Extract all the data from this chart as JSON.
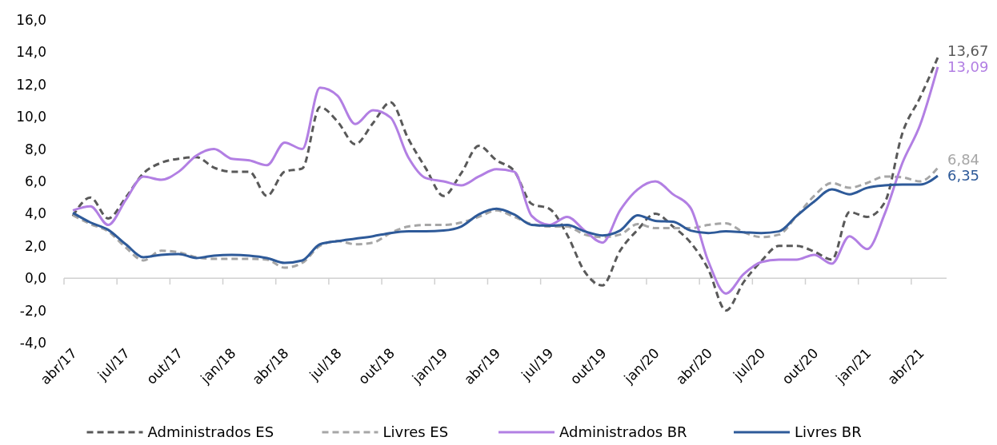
{
  "chart_data": {
    "type": "line",
    "categories": [
      "abr/17",
      null,
      null,
      "jul/17",
      null,
      null,
      "out/17",
      null,
      null,
      "jan/18",
      null,
      null,
      "abr/18",
      null,
      null,
      "jul/18",
      null,
      null,
      "out/18",
      null,
      null,
      "jan/19",
      null,
      null,
      "abr/19",
      null,
      null,
      "jul/19",
      null,
      null,
      "out/19",
      null,
      null,
      "jan/20",
      null,
      null,
      "abr/20",
      null,
      null,
      "jul/20",
      null,
      null,
      "out/20",
      null,
      null,
      "jan/21",
      null,
      null,
      "abr/21",
      null
    ],
    "ylim": [
      -4,
      16
    ],
    "yticks": [
      {
        "value": -4,
        "label": "-4,0"
      },
      {
        "value": -2,
        "label": "-2,0"
      },
      {
        "value": 0,
        "label": "0,0"
      },
      {
        "value": 2,
        "label": "2,0"
      },
      {
        "value": 4,
        "label": "4,0"
      },
      {
        "value": 6,
        "label": "6,0"
      },
      {
        "value": 8,
        "label": "8,0"
      },
      {
        "value": 10,
        "label": "10,0"
      },
      {
        "value": 12,
        "label": "12,0"
      },
      {
        "value": 14,
        "label": "14,0"
      },
      {
        "value": 16,
        "label": "16,0"
      }
    ],
    "legend": "bottom",
    "marker": "none",
    "series": [
      {
        "name": "Administrados ES",
        "color": "#595959",
        "line_style": "dashed",
        "values": [
          3.85,
          5.0,
          3.7,
          5.0,
          6.5,
          7.15,
          7.4,
          7.5,
          6.85,
          6.6,
          6.6,
          5.1,
          6.6,
          6.8,
          10.6,
          9.7,
          8.3,
          9.6,
          10.9,
          8.65,
          6.8,
          5.1,
          6.5,
          8.2,
          7.3,
          6.65,
          4.6,
          4.3,
          2.7,
          0.4,
          -0.45,
          1.7,
          3.0,
          4.0,
          3.2,
          2.2,
          0.55,
          -2.0,
          -0.25,
          1.05,
          2.0,
          2.0,
          1.65,
          1.15,
          4.1,
          3.8,
          4.7,
          9.0,
          11.2,
          13.67
        ],
        "value_labels": [
          null,
          null,
          null,
          null,
          null,
          null,
          null,
          null,
          null,
          null,
          null,
          null,
          null,
          null,
          null,
          null,
          null,
          null,
          null,
          null,
          null,
          null,
          null,
          null,
          null,
          null,
          null,
          null,
          null,
          null,
          null,
          null,
          null,
          null,
          null,
          null,
          null,
          null,
          null,
          null,
          null,
          null,
          null,
          null,
          null,
          null,
          null,
          null,
          null,
          "13,67"
        ]
      },
      {
        "name": "Livres ES",
        "color": "#a6a6a6",
        "line_style": "dashed",
        "values": [
          3.9,
          3.35,
          2.9,
          1.9,
          1.1,
          1.7,
          1.6,
          1.3,
          1.2,
          1.2,
          1.2,
          1.15,
          0.65,
          0.95,
          2.0,
          2.3,
          2.1,
          2.2,
          2.8,
          3.2,
          3.3,
          3.3,
          3.45,
          3.8,
          4.2,
          3.8,
          3.35,
          3.2,
          3.2,
          2.7,
          2.55,
          2.7,
          3.35,
          3.1,
          3.1,
          3.1,
          3.3,
          3.4,
          2.85,
          2.55,
          2.7,
          3.85,
          5.1,
          5.9,
          5.6,
          5.9,
          6.3,
          6.25,
          6.0,
          6.84
        ],
        "value_labels": [
          null,
          null,
          null,
          null,
          null,
          null,
          null,
          null,
          null,
          null,
          null,
          null,
          null,
          null,
          null,
          null,
          null,
          null,
          null,
          null,
          null,
          null,
          null,
          null,
          null,
          null,
          null,
          null,
          null,
          null,
          null,
          null,
          null,
          null,
          null,
          null,
          null,
          null,
          null,
          null,
          null,
          null,
          null,
          null,
          null,
          null,
          null,
          null,
          null,
          "6,84"
        ]
      },
      {
        "name": "Administrados BR",
        "color": "#b27fe3",
        "line_style": "solid",
        "values": [
          4.2,
          4.45,
          3.3,
          4.85,
          6.3,
          6.1,
          6.6,
          7.6,
          8.0,
          7.4,
          7.3,
          7.0,
          8.4,
          8.0,
          11.8,
          11.3,
          9.55,
          10.4,
          9.95,
          7.5,
          6.2,
          6.0,
          5.75,
          6.3,
          6.75,
          6.6,
          3.85,
          3.3,
          3.8,
          2.95,
          2.2,
          4.2,
          5.5,
          6.0,
          5.2,
          4.35,
          1.05,
          -0.95,
          0.25,
          1.0,
          1.15,
          1.15,
          1.45,
          0.9,
          2.6,
          1.8,
          4.0,
          7.15,
          9.5,
          13.09
        ],
        "value_labels": [
          null,
          null,
          null,
          null,
          null,
          null,
          null,
          null,
          null,
          null,
          null,
          null,
          null,
          null,
          null,
          null,
          null,
          null,
          null,
          null,
          null,
          null,
          null,
          null,
          null,
          null,
          null,
          null,
          null,
          null,
          null,
          null,
          null,
          null,
          null,
          null,
          null,
          null,
          null,
          null,
          null,
          null,
          null,
          null,
          null,
          null,
          null,
          null,
          null,
          "13,09"
        ]
      },
      {
        "name": "Livres BR",
        "color": "#2e5a99",
        "line_style": "solid",
        "values": [
          4.05,
          3.45,
          3.0,
          2.1,
          1.3,
          1.45,
          1.5,
          1.25,
          1.4,
          1.45,
          1.4,
          1.25,
          0.95,
          1.1,
          2.1,
          2.3,
          2.45,
          2.6,
          2.8,
          2.9,
          2.9,
          2.95,
          3.2,
          3.95,
          4.3,
          3.95,
          3.3,
          3.25,
          3.3,
          2.9,
          2.65,
          2.95,
          3.9,
          3.55,
          3.5,
          2.95,
          2.8,
          2.9,
          2.85,
          2.8,
          2.9,
          3.85,
          4.75,
          5.5,
          5.2,
          5.6,
          5.75,
          5.8,
          5.8,
          6.35
        ],
        "value_labels": [
          null,
          null,
          null,
          null,
          null,
          null,
          null,
          null,
          null,
          null,
          null,
          null,
          null,
          null,
          null,
          null,
          null,
          null,
          null,
          null,
          null,
          null,
          null,
          null,
          null,
          null,
          null,
          null,
          null,
          null,
          null,
          null,
          null,
          null,
          null,
          null,
          null,
          null,
          null,
          null,
          null,
          null,
          null,
          null,
          null,
          null,
          null,
          null,
          null,
          "6,35"
        ]
      }
    ]
  }
}
